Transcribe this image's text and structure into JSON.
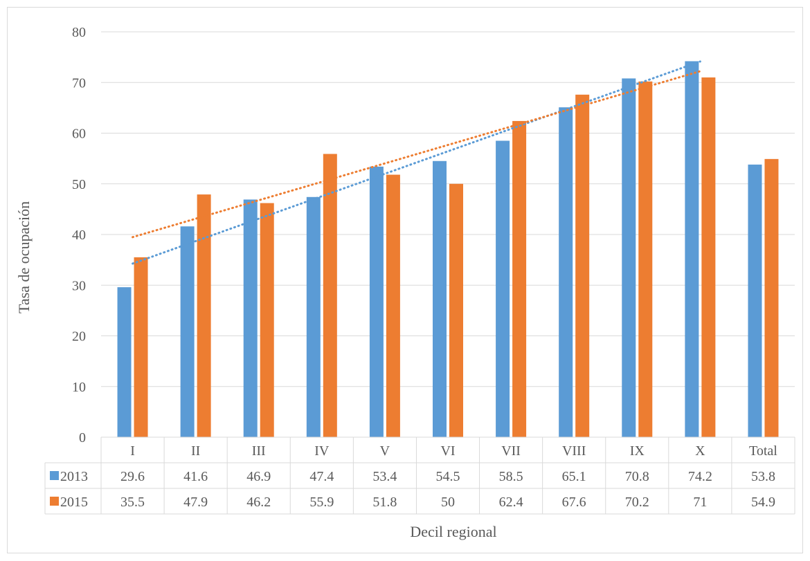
{
  "chart_data": {
    "type": "bar",
    "xlabel": "Decil regional",
    "ylabel": "Tasa de ocupación",
    "ylim": [
      0,
      80
    ],
    "yticks": [
      0,
      10,
      20,
      30,
      40,
      50,
      60,
      70,
      80
    ],
    "categories": [
      "I",
      "II",
      "III",
      "IV",
      "V",
      "VI",
      "VII",
      "VIII",
      "IX",
      "X",
      "Total"
    ],
    "series": [
      {
        "name": "2013",
        "color": "#5b9bd5",
        "values": [
          29.6,
          41.6,
          46.9,
          47.4,
          53.4,
          54.5,
          58.5,
          65.1,
          70.8,
          74.2,
          53.8
        ],
        "labels": [
          "29.6",
          "41.6",
          "46.9",
          "47.4",
          "53.4",
          "54.5",
          "58.5",
          "65.1",
          "70.8",
          "74.2",
          "53.8"
        ]
      },
      {
        "name": "2015",
        "color": "#ed7d31",
        "values": [
          35.5,
          47.9,
          46.2,
          55.9,
          51.8,
          50,
          62.4,
          67.6,
          70.2,
          71,
          54.9
        ],
        "labels": [
          "35.5",
          "47.9",
          "46.2",
          "55.9",
          "51.8",
          "50",
          "62.4",
          "67.6",
          "70.2",
          "71",
          "54.9"
        ]
      }
    ],
    "trendlines": {
      "type": "linear",
      "style": "dotted",
      "applies_to_categories": 10
    },
    "gridlines": true,
    "legend": "data-table"
  }
}
